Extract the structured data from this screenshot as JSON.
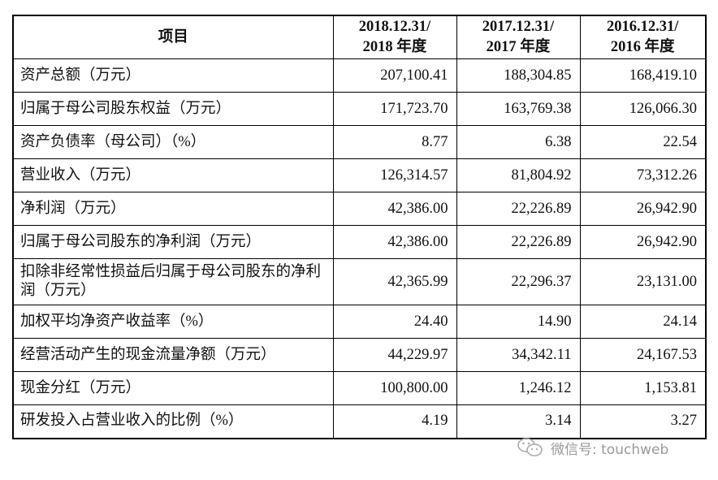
{
  "table": {
    "headers": [
      {
        "line1": "项目",
        "line2": ""
      },
      {
        "line1": "2018.12.31/",
        "line2": "2018 年度"
      },
      {
        "line1": "2017.12.31/",
        "line2": "2017 年度"
      },
      {
        "line1": "2016.12.31/",
        "line2": "2016 年度"
      }
    ],
    "rows": [
      {
        "label": "资产总额（万元）",
        "values": [
          "207,100.41",
          "188,304.85",
          "168,419.10"
        ]
      },
      {
        "label": "归属于母公司股东权益（万元）",
        "values": [
          "171,723.70",
          "163,769.38",
          "126,066.30"
        ]
      },
      {
        "label": "资产负债率（母公司）（%）",
        "values": [
          "8.77",
          "6.38",
          "22.54"
        ]
      },
      {
        "label": "营业收入（万元）",
        "values": [
          "126,314.57",
          "81,804.92",
          "73,312.26"
        ]
      },
      {
        "label": "净利润（万元）",
        "values": [
          "42,386.00",
          "22,226.89",
          "26,942.90"
        ]
      },
      {
        "label": "归属于母公司股东的净利润（万元）",
        "values": [
          "42,386.00",
          "22,226.89",
          "26,942.90"
        ]
      },
      {
        "label": "扣除非经常性损益后归属于母公司股东的净利润（万元）",
        "values": [
          "42,365.99",
          "22,296.37",
          "23,131.00"
        ]
      },
      {
        "label": "加权平均净资产收益率（%）",
        "values": [
          "24.40",
          "14.90",
          "24.14"
        ]
      },
      {
        "label": "经营活动产生的现金流量净额（万元）",
        "values": [
          "44,229.97",
          "34,342.11",
          "24,167.53"
        ]
      },
      {
        "label": "现金分红（万元）",
        "values": [
          "100,800.00",
          "1,246.12",
          "1,153.81"
        ]
      },
      {
        "label": "研发投入占营业收入的比例（%）",
        "values": [
          "4.19",
          "3.14",
          "3.27"
        ]
      }
    ]
  },
  "watermark": {
    "icon": "wechat-icon",
    "text": "微信号: touchweb"
  }
}
